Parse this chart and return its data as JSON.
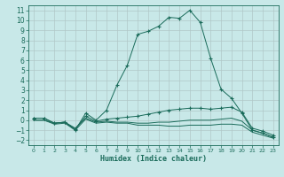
{
  "xlabel": "Humidex (Indice chaleur)",
  "background_color": "#c8e8e8",
  "grid_color": "#b0c8c8",
  "line_color": "#1a6b5a",
  "xlim": [
    -0.5,
    23.5
  ],
  "ylim": [
    -2.5,
    11.5
  ],
  "xticks": [
    0,
    1,
    2,
    3,
    4,
    5,
    6,
    7,
    8,
    9,
    10,
    11,
    12,
    13,
    14,
    15,
    16,
    17,
    18,
    19,
    20,
    21,
    22,
    23
  ],
  "yticks": [
    -2,
    -1,
    0,
    1,
    2,
    3,
    4,
    5,
    6,
    7,
    8,
    9,
    10,
    11
  ],
  "lines": [
    {
      "x": [
        0,
        1,
        2,
        3,
        4,
        5,
        6,
        7,
        8,
        9,
        10,
        11,
        12,
        13,
        14,
        15,
        16,
        17,
        18,
        19,
        20,
        21,
        22,
        23
      ],
      "y": [
        0.2,
        0.2,
        -0.3,
        -0.2,
        -1.0,
        0.7,
        0.0,
        1.0,
        3.5,
        5.5,
        8.6,
        8.9,
        9.4,
        10.3,
        10.2,
        11.0,
        9.8,
        6.2,
        3.1,
        2.2,
        0.7,
        -1.0,
        -1.3,
        -1.7
      ],
      "marker": "+"
    },
    {
      "x": [
        0,
        1,
        2,
        3,
        4,
        5,
        6,
        7,
        8,
        9,
        10,
        11,
        12,
        13,
        14,
        15,
        16,
        17,
        18,
        19,
        20,
        21,
        22,
        23
      ],
      "y": [
        0.2,
        0.2,
        -0.3,
        -0.2,
        -0.9,
        0.4,
        -0.1,
        0.1,
        0.2,
        0.3,
        0.4,
        0.6,
        0.8,
        1.0,
        1.1,
        1.2,
        1.2,
        1.1,
        1.2,
        1.3,
        0.8,
        -0.8,
        -1.1,
        -1.5
      ],
      "marker": "+"
    },
    {
      "x": [
        0,
        1,
        2,
        3,
        4,
        5,
        6,
        7,
        8,
        9,
        10,
        11,
        12,
        13,
        14,
        15,
        16,
        17,
        18,
        19,
        20,
        21,
        22,
        23
      ],
      "y": [
        0.0,
        0.0,
        -0.3,
        -0.2,
        -0.8,
        0.2,
        -0.2,
        -0.1,
        -0.2,
        -0.2,
        -0.3,
        -0.3,
        -0.2,
        -0.2,
        -0.1,
        0.0,
        0.0,
        0.0,
        0.1,
        0.2,
        -0.1,
        -1.0,
        -1.3,
        -1.7
      ],
      "marker": null
    },
    {
      "x": [
        0,
        1,
        2,
        3,
        4,
        5,
        6,
        7,
        8,
        9,
        10,
        11,
        12,
        13,
        14,
        15,
        16,
        17,
        18,
        19,
        20,
        21,
        22,
        23
      ],
      "y": [
        0.0,
        0.0,
        -0.4,
        -0.3,
        -1.0,
        0.1,
        -0.3,
        -0.2,
        -0.3,
        -0.3,
        -0.5,
        -0.5,
        -0.5,
        -0.6,
        -0.6,
        -0.5,
        -0.5,
        -0.5,
        -0.4,
        -0.4,
        -0.5,
        -1.2,
        -1.5,
        -1.8
      ],
      "marker": null
    }
  ]
}
